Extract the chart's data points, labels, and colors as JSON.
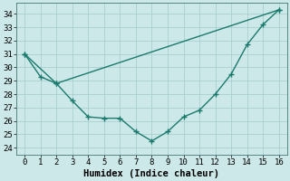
{
  "line1_x": [
    0,
    1,
    2,
    3,
    4,
    5,
    6,
    7,
    8,
    9,
    10,
    11,
    12,
    13,
    14,
    15,
    16
  ],
  "line1_y": [
    31.0,
    29.3,
    28.8,
    27.5,
    26.3,
    26.2,
    26.2,
    25.2,
    24.5,
    25.2,
    26.3,
    26.8,
    28.0,
    29.5,
    31.7,
    33.2,
    34.3
  ],
  "line2_x": [
    0,
    2,
    16
  ],
  "line2_y": [
    31.0,
    28.8,
    34.3
  ],
  "color": "#1a7a6e",
  "background": "#cde8e8",
  "grid_color": "#aacfcf",
  "xlabel": "Humidex (Indice chaleur)",
  "xlim": [
    -0.5,
    16.5
  ],
  "ylim": [
    23.5,
    34.8
  ],
  "yticks": [
    24,
    25,
    26,
    27,
    28,
    29,
    30,
    31,
    32,
    33,
    34
  ],
  "xticks": [
    0,
    1,
    2,
    3,
    4,
    5,
    6,
    7,
    8,
    9,
    10,
    11,
    12,
    13,
    14,
    15,
    16
  ],
  "marker": "+",
  "markersize": 4,
  "linewidth": 1.0,
  "xlabel_fontsize": 7.5,
  "tick_fontsize": 6.5
}
